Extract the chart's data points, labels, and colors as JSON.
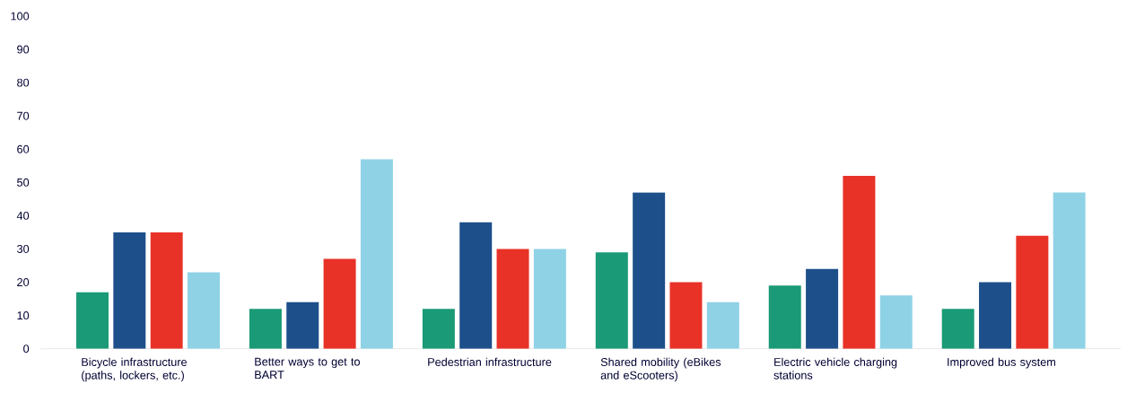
{
  "chart_data": {
    "type": "bar",
    "categories": [
      "Bicycle infrastructure (paths, lockers, etc.)",
      "Better ways to get to BART",
      "Pedestrian infrastructure",
      "Shared mobility (eBikes and eScooters)",
      "Electric vehicle charging stations",
      "Improved bus system"
    ],
    "series": [
      {
        "color": "#1a9a76",
        "values": [
          17,
          12,
          12,
          29,
          19,
          12
        ]
      },
      {
        "color": "#1d4f8a",
        "values": [
          35,
          14,
          38,
          47,
          24,
          20
        ]
      },
      {
        "color": "#e83228",
        "values": [
          35,
          27,
          30,
          20,
          52,
          34
        ]
      },
      {
        "color": "#8fd2e6",
        "values": [
          23,
          57,
          30,
          14,
          16,
          47
        ]
      }
    ],
    "ylim": [
      0,
      100
    ],
    "yticks": [
      0,
      10,
      20,
      30,
      40,
      50,
      60,
      70,
      80,
      90,
      100
    ]
  }
}
